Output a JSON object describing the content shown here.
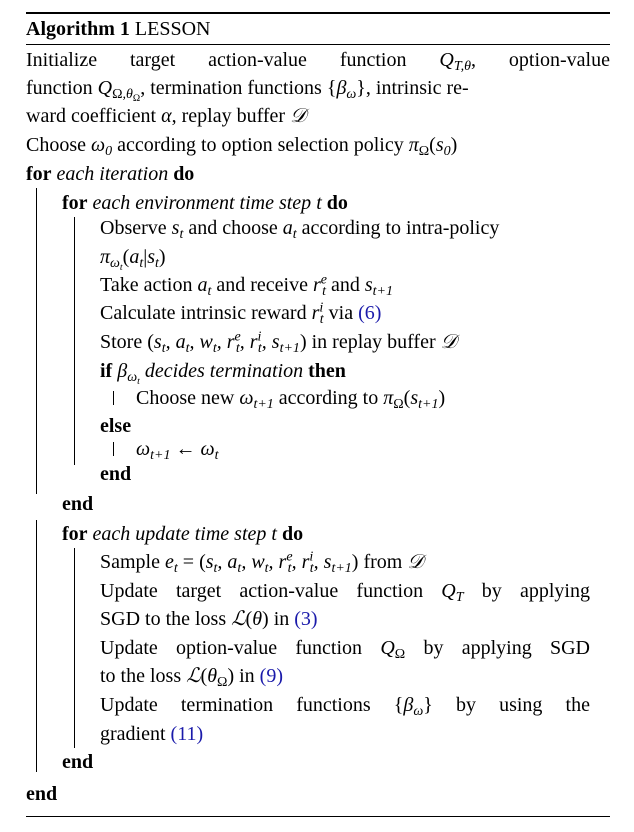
{
  "algorithm": {
    "label": "Algorithm 1",
    "name": "LESSON",
    "lines": {
      "init1a": "Initialize target action-value function ",
      "init1b": ", option-value",
      "init2a": "function ",
      "init2b": ", termination functions ",
      "init2c": ", intrinsic re-",
      "init3a": "ward coefficient ",
      "init3b": ", replay buffer ",
      "choose_a": "Choose ",
      "choose_b": " according to option selection policy ",
      "for_kw": "for",
      "do_kw": "do",
      "end_kw": "end",
      "if_kw": "if",
      "then_kw": "then",
      "else_kw": "else",
      "each_iteration": "each iteration",
      "each_env_step": "each environment time step",
      "each_update_step": "each update time step",
      "observe_a": "Observe ",
      "observe_b": " and choose ",
      "observe_c": " according to intra-policy",
      "take_a": "Take action ",
      "take_b": " and receive ",
      "take_c": " and ",
      "calc_a": "Calculate intrinsic reward ",
      "calc_b": " via ",
      "store_a": "Store ",
      "store_b": " in replay buffer ",
      "decides": " decides termination ",
      "choose_new_a": "Choose new ",
      "choose_new_b": " according to ",
      "sample_a": "Sample ",
      "sample_b": " from ",
      "upd_target_a": "Update target action-value function ",
      "upd_target_b": " by applying",
      "sgd_loss_a": "SGD to the loss ",
      "sgd_loss_b": " in ",
      "upd_option_a": "Update option-value function ",
      "upd_option_b": " by applying SGD",
      "to_loss_a": "to the loss ",
      "to_loss_b": " in ",
      "upd_term_a": "Update termination functions ",
      "upd_term_b": " by using the",
      "gradient": "gradient "
    },
    "refs": {
      "eq6": "(6)",
      "eq3": "(3)",
      "eq9": "(9)",
      "eq11": "(11)"
    }
  }
}
